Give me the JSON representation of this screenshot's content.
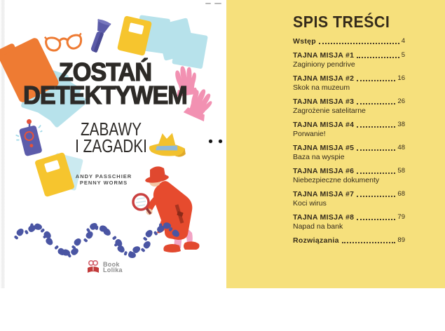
{
  "cover": {
    "title_line1": "ZOSTAŃ",
    "title_line2": "DETEKTYWEM",
    "subtitle_line1": "ZABAWY",
    "subtitle_line2": "I ZAGADKI",
    "authors": [
      "Andy Passchier",
      "Penny Worms"
    ],
    "publisher": {
      "line1": "Book",
      "line2": "Lolika"
    }
  },
  "toc": {
    "heading": "SPIS TREŚCI",
    "entries": [
      {
        "label": "Wstęp",
        "page": "4",
        "subtitle": ""
      },
      {
        "label": "TAJNA MISJA #1",
        "page": "5",
        "subtitle": "Zaginiony pendrive"
      },
      {
        "label": "TAJNA MISJA #2",
        "page": "16",
        "subtitle": "Skok na muzeum"
      },
      {
        "label": "TAJNA MISJA #3",
        "page": "26",
        "subtitle": "Zagrożenie satelitarne"
      },
      {
        "label": "TAJNA MISJA #4",
        "page": "38",
        "subtitle": "Porwanie!"
      },
      {
        "label": "TAJNA MISJA #5",
        "page": "48",
        "subtitle": "Baza na wyspie"
      },
      {
        "label": "TAJNA MISJA #6",
        "page": "58",
        "subtitle": "Niebezpieczne dokumenty"
      },
      {
        "label": "TAJNA MISJA #7",
        "page": "68",
        "subtitle": "Koci wirus"
      },
      {
        "label": "TAJNA MISJA #8",
        "page": "79",
        "subtitle": "Napad na bank"
      },
      {
        "label": "Rozwiązania",
        "page": "89",
        "subtitle": ""
      }
    ]
  },
  "illustrations": [
    "orange-folder-icon",
    "paper-sheets-icon",
    "detective-glasses-icon",
    "flashlight-icon",
    "notebook-icon",
    "rubber-gloves-icon",
    "walkie-talkie-icon",
    "fedora-hat-icon",
    "detective-character-icon",
    "footprints-trail-icon",
    "publisher-logo-icon",
    "earbuds-icon",
    "spiral-notepad-icon"
  ],
  "colors": {
    "page_yellow": "#f6e07c",
    "toc_text": "#352b1b",
    "title_black": "#2d2a27",
    "orange": "#ee7b33",
    "light_blue": "#b7e2eb",
    "prop_yellow": "#f6c52e",
    "flashlight_blue": "#5b5ba8",
    "glove_pink": "#f291b2",
    "footprint_blue": "#4a55a3",
    "detective_red": "#e64b2e",
    "spiral_teal": "#4fa8b8",
    "logo_red": "#c23b3b"
  }
}
